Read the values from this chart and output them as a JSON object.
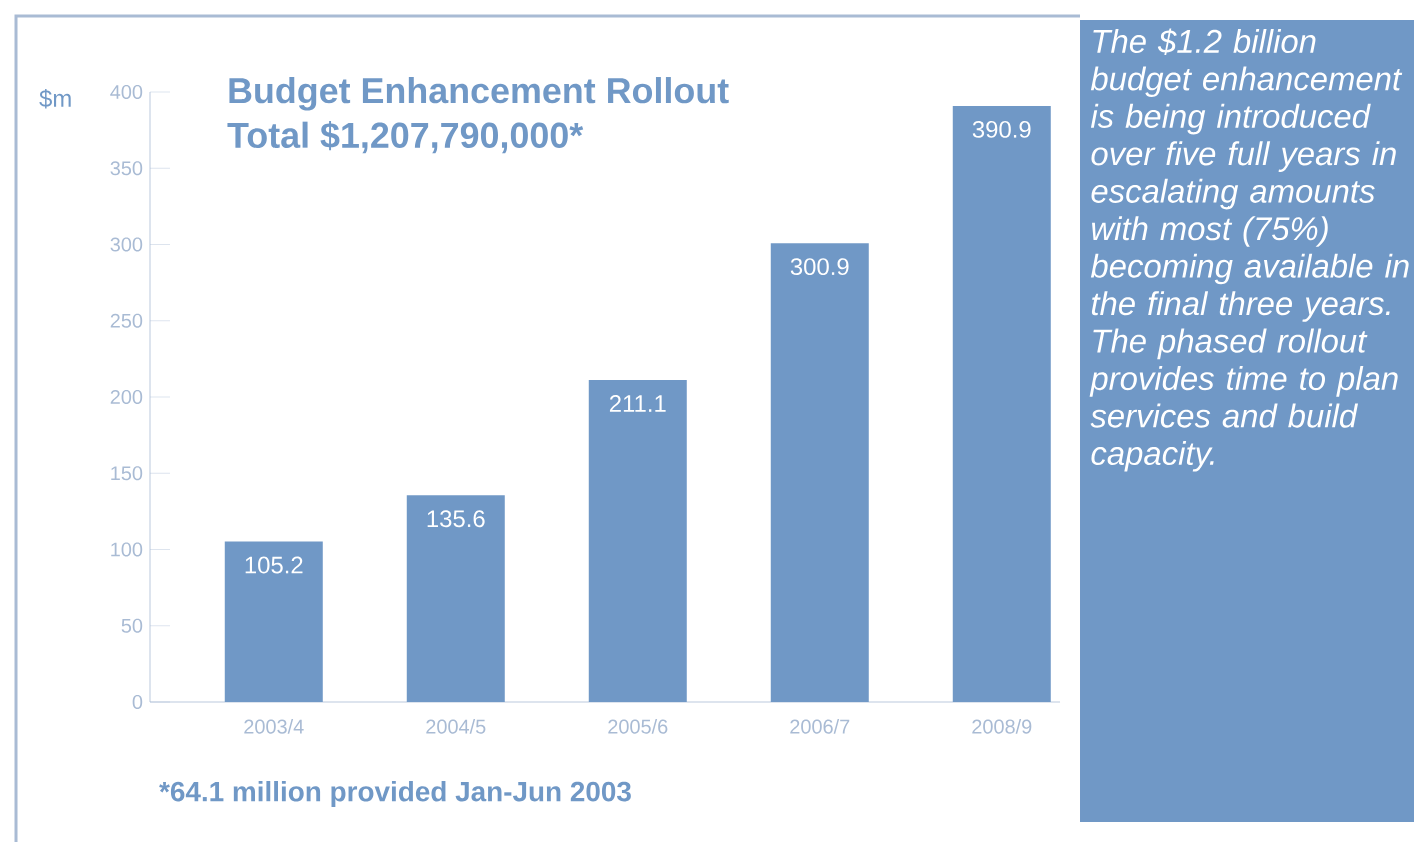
{
  "chart_data": {
    "type": "bar",
    "title": "Budget Enhancement Rollout",
    "subtitle": "Total $1,207,790,000*",
    "ylabel": "$m",
    "categories": [
      "2003/4",
      "2004/5",
      "2005/6",
      "2006/7",
      "2008/9"
    ],
    "values": [
      105.2,
      135.6,
      211.1,
      300.9,
      390.9
    ],
    "color": "#7098c6",
    "ylim": [
      0,
      400
    ],
    "yticks": [
      0,
      50,
      100,
      150,
      200,
      250,
      300,
      350,
      400
    ],
    "grid": false,
    "data_labels": true,
    "annotations": [
      "*64.1 million provided Jan-Jun 2003",
      "The $1.2 billion budget enhancement is being introduced over five full years in escalating amounts with most (75%) becoming available in the final three years. The phased rollout provides time to plan services and build capacity."
    ]
  }
}
